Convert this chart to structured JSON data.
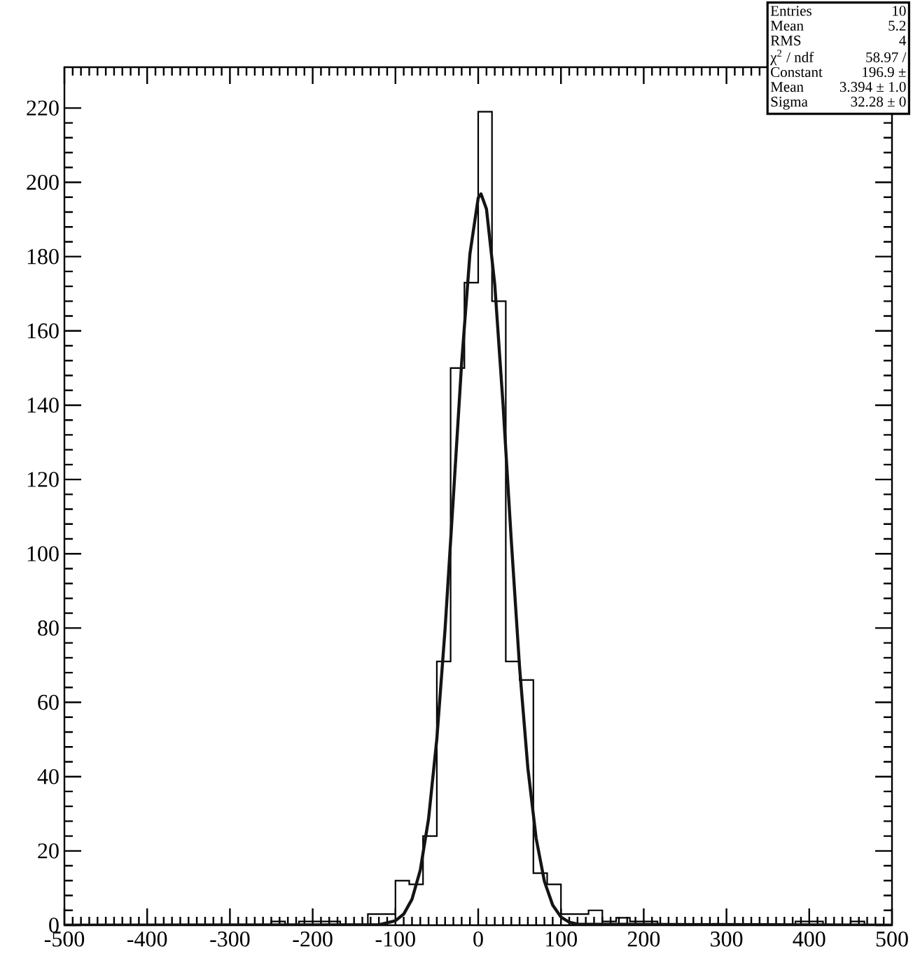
{
  "chart_data": {
    "type": "histogram",
    "color": "#000000",
    "bins": [
      -500,
      -483.33,
      -466.67,
      -450,
      -433.33,
      -416.67,
      -400,
      -383.33,
      -366.67,
      -350,
      -333.33,
      -316.67,
      -300,
      -283.33,
      -266.67,
      -250,
      -233.33,
      -216.67,
      -200,
      -183.33,
      -166.67,
      -150,
      -133.33,
      -116.67,
      -100,
      -83.33,
      -66.67,
      -50,
      -33.33,
      -16.67,
      0,
      16.67,
      33.33,
      50,
      66.67,
      83.33,
      100,
      116.67,
      133.33,
      150,
      166.67,
      183.33,
      200,
      216.67,
      233.33,
      250,
      266.67,
      283.33,
      300,
      316.67,
      333.33,
      350,
      366.67,
      383.33,
      400,
      416.67,
      433.33,
      450,
      466.67,
      483.33,
      500
    ],
    "values": [
      0,
      0,
      0,
      0,
      0,
      0,
      0,
      0,
      0,
      0,
      0,
      0,
      0,
      0,
      0,
      1,
      0,
      1,
      1,
      1,
      0,
      0,
      3,
      3,
      12,
      11,
      24,
      71,
      150,
      173,
      219,
      168,
      71,
      66,
      14,
      11,
      3,
      3,
      4,
      1,
      2,
      1,
      1,
      0,
      0,
      0,
      0,
      0,
      0,
      0,
      0,
      0,
      0,
      1,
      1,
      0,
      0,
      1,
      0,
      0
    ],
    "series": [
      {
        "type": "line",
        "color": "#141414",
        "x": [
          -500,
          -120,
          -100,
          -90,
          -80,
          -70,
          -60,
          -50,
          -40,
          -30,
          -20,
          -10,
          0,
          3.4,
          10,
          20,
          30,
          40,
          50,
          60,
          70,
          80,
          90,
          100,
          110,
          120,
          500
        ],
        "values": [
          0,
          0.1,
          1.2,
          3,
          7,
          14.8,
          28.6,
          50.1,
          79.8,
          115.3,
          151.4,
          180.7,
          195.8,
          196.9,
          192.8,
          172.5,
          140.2,
          103.5,
          69.4,
          42.3,
          23.4,
          11.8,
          5.4,
          2.2,
          0.8,
          0.3,
          0
        ]
      }
    ],
    "xlim": [
      -500,
      500
    ],
    "ylim": [
      0,
      231
    ],
    "xticks": [
      -500,
      -400,
      -300,
      -200,
      -100,
      0,
      100,
      200,
      300,
      400,
      500
    ],
    "yticks": [
      0,
      20,
      40,
      60,
      80,
      100,
      120,
      140,
      160,
      180,
      200,
      220
    ],
    "annotations": [
      "Entries",
      "10",
      "Mean",
      "5.2",
      "RMS",
      "4",
      "χ$^{2}$ / ndf",
      "58.97 /",
      "Constant",
      "196.9 ±",
      "Mean",
      "3.394 ± 1.0",
      "Sigma",
      "32.28 ± 0"
    ]
  }
}
